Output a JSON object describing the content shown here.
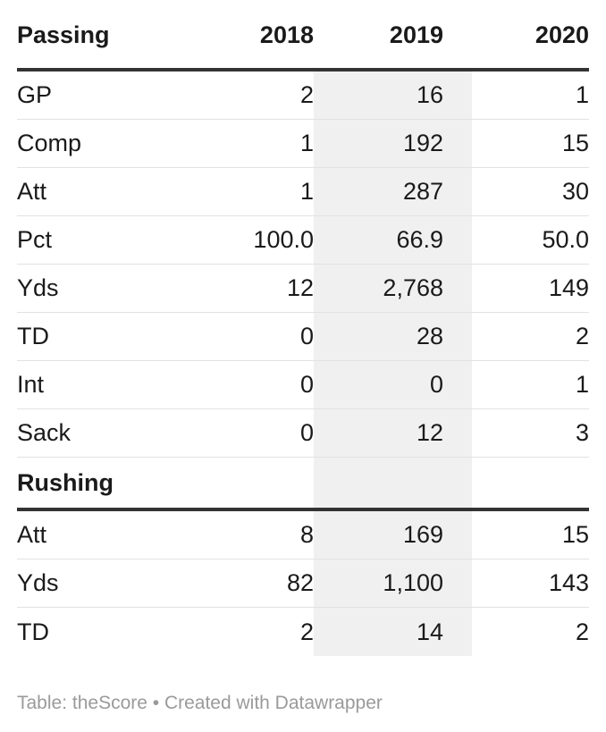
{
  "chart_data": {
    "type": "table",
    "columns": [
      "2018",
      "2019",
      "2020"
    ],
    "sections": [
      {
        "title": "Passing",
        "rows": [
          {
            "label": "GP",
            "values": [
              "2",
              "16",
              "1"
            ]
          },
          {
            "label": "Comp",
            "values": [
              "1",
              "192",
              "15"
            ]
          },
          {
            "label": "Att",
            "values": [
              "1",
              "287",
              "30"
            ]
          },
          {
            "label": "Pct",
            "values": [
              "100.0",
              "66.9",
              "50.0"
            ]
          },
          {
            "label": "Yds",
            "values": [
              "12",
              "2,768",
              "149"
            ]
          },
          {
            "label": "TD",
            "values": [
              "0",
              "28",
              "2"
            ]
          },
          {
            "label": "Int",
            "values": [
              "0",
              "0",
              "1"
            ]
          },
          {
            "label": "Sack",
            "values": [
              "0",
              "12",
              "3"
            ]
          }
        ]
      },
      {
        "title": "Rushing",
        "rows": [
          {
            "label": "Att",
            "values": [
              "8",
              "169",
              "15"
            ]
          },
          {
            "label": "Yds",
            "values": [
              "82",
              "1,100",
              "143"
            ]
          },
          {
            "label": "TD",
            "values": [
              "2",
              "14",
              "2"
            ]
          }
        ]
      }
    ],
    "highlight_column": "2019",
    "colors": {
      "text": "#1a1a1a",
      "rule": "#333333",
      "row_divider": "#e2e2e2",
      "highlight_bg": "#f0f0f0",
      "footer": "#9a9a9a"
    }
  },
  "footer": "Table: theScore • Created with Datawrapper"
}
